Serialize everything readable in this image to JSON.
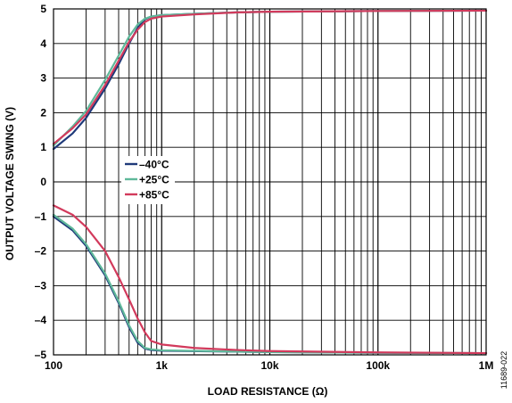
{
  "chart_data": {
    "type": "line",
    "xlabel": "LOAD RESISTANCE (Ω)",
    "ylabel": "OUTPUT VOLTAGE SWING (V)",
    "x_scale": "log",
    "xlim": [
      100,
      1000000
    ],
    "ylim": [
      -5,
      5
    ],
    "x_ticks": [
      {
        "value": 100,
        "label": "100"
      },
      {
        "value": 1000,
        "label": "1k"
      },
      {
        "value": 10000,
        "label": "10k"
      },
      {
        "value": 100000,
        "label": "100k"
      },
      {
        "value": 1000000,
        "label": "1M"
      }
    ],
    "y_ticks": [
      5,
      4,
      3,
      2,
      1,
      0,
      -1,
      -2,
      -3,
      -4,
      -5
    ],
    "y_tick_labels": [
      "5",
      "4",
      "3",
      "2",
      "1",
      "0",
      "–1",
      "–2",
      "–3",
      "–4",
      "–5"
    ],
    "grid": true,
    "legend_position": "center-left",
    "figure_id": "11689-022",
    "series": [
      {
        "name": "–40°C",
        "color": "#1f3a7a",
        "high": [
          [
            100,
            0.95
          ],
          [
            150,
            1.4
          ],
          [
            200,
            1.85
          ],
          [
            300,
            2.7
          ],
          [
            400,
            3.4
          ],
          [
            500,
            4.0
          ],
          [
            600,
            4.45
          ],
          [
            700,
            4.7
          ],
          [
            800,
            4.78
          ],
          [
            1000,
            4.82
          ],
          [
            2000,
            4.86
          ],
          [
            5000,
            4.9
          ],
          [
            10000,
            4.92
          ],
          [
            100000,
            4.94
          ],
          [
            1000000,
            4.95
          ]
        ],
        "low": [
          [
            100,
            -1.0
          ],
          [
            150,
            -1.4
          ],
          [
            200,
            -1.85
          ],
          [
            300,
            -2.7
          ],
          [
            400,
            -3.5
          ],
          [
            500,
            -4.2
          ],
          [
            600,
            -4.65
          ],
          [
            700,
            -4.82
          ],
          [
            800,
            -4.86
          ],
          [
            1000,
            -4.88
          ],
          [
            10000,
            -4.92
          ],
          [
            100000,
            -4.94
          ],
          [
            1000000,
            -4.95
          ]
        ]
      },
      {
        "name": "+25°C",
        "color": "#5fb89a",
        "high": [
          [
            100,
            1.05
          ],
          [
            150,
            1.6
          ],
          [
            200,
            2.05
          ],
          [
            300,
            2.95
          ],
          [
            400,
            3.65
          ],
          [
            500,
            4.2
          ],
          [
            600,
            4.55
          ],
          [
            700,
            4.72
          ],
          [
            800,
            4.78
          ],
          [
            1000,
            4.82
          ],
          [
            2000,
            4.86
          ],
          [
            5000,
            4.9
          ],
          [
            10000,
            4.92
          ],
          [
            100000,
            4.94
          ],
          [
            1000000,
            4.95
          ]
        ],
        "low": [
          [
            100,
            -0.95
          ],
          [
            150,
            -1.35
          ],
          [
            200,
            -1.8
          ],
          [
            300,
            -2.65
          ],
          [
            400,
            -3.45
          ],
          [
            500,
            -4.15
          ],
          [
            600,
            -4.6
          ],
          [
            700,
            -4.8
          ],
          [
            800,
            -4.84
          ],
          [
            1000,
            -4.87
          ],
          [
            10000,
            -4.92
          ],
          [
            100000,
            -4.94
          ],
          [
            1000000,
            -4.95
          ]
        ]
      },
      {
        "name": "+85°C",
        "color": "#d23a5c",
        "high": [
          [
            100,
            1.1
          ],
          [
            150,
            1.55
          ],
          [
            200,
            1.95
          ],
          [
            300,
            2.8
          ],
          [
            400,
            3.5
          ],
          [
            500,
            4.05
          ],
          [
            600,
            4.4
          ],
          [
            700,
            4.62
          ],
          [
            800,
            4.72
          ],
          [
            1000,
            4.78
          ],
          [
            2000,
            4.84
          ],
          [
            5000,
            4.9
          ],
          [
            10000,
            4.92
          ],
          [
            100000,
            4.94
          ],
          [
            1000000,
            4.95
          ]
        ],
        "low": [
          [
            100,
            -0.68
          ],
          [
            150,
            -0.95
          ],
          [
            200,
            -1.3
          ],
          [
            300,
            -2.0
          ],
          [
            400,
            -2.75
          ],
          [
            500,
            -3.4
          ],
          [
            600,
            -3.95
          ],
          [
            700,
            -4.35
          ],
          [
            800,
            -4.6
          ],
          [
            1000,
            -4.7
          ],
          [
            2000,
            -4.8
          ],
          [
            5000,
            -4.86
          ],
          [
            10000,
            -4.89
          ],
          [
            100000,
            -4.93
          ],
          [
            1000000,
            -4.95
          ]
        ]
      }
    ]
  }
}
